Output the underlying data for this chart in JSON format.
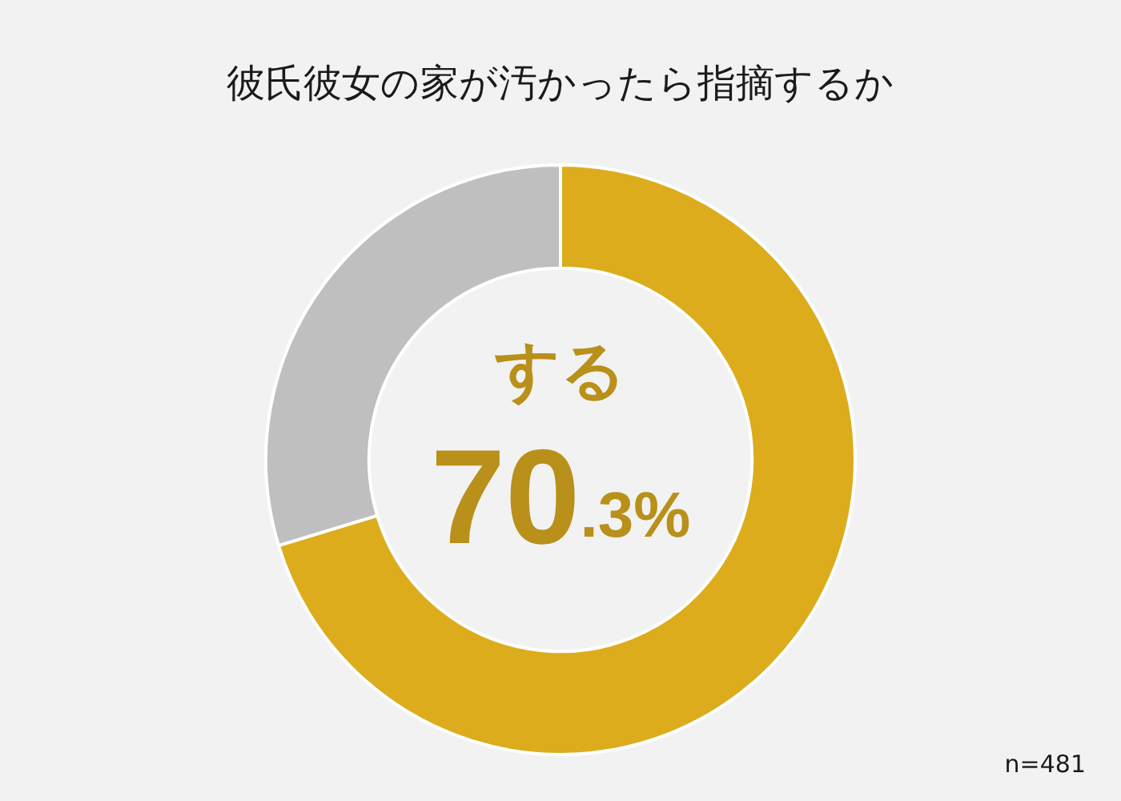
{
  "chart_data": {
    "type": "donut",
    "title": "彼氏彼女の家が汚かったら指摘するか",
    "categories": [
      "する",
      null
    ],
    "values": [
      70.3,
      29.7
    ],
    "colors": [
      "#dcac1c",
      "#bfbfbf"
    ],
    "value_labels": [
      "70.3%",
      null
    ],
    "legend": false,
    "annotations": [
      "n=481"
    ]
  }
}
